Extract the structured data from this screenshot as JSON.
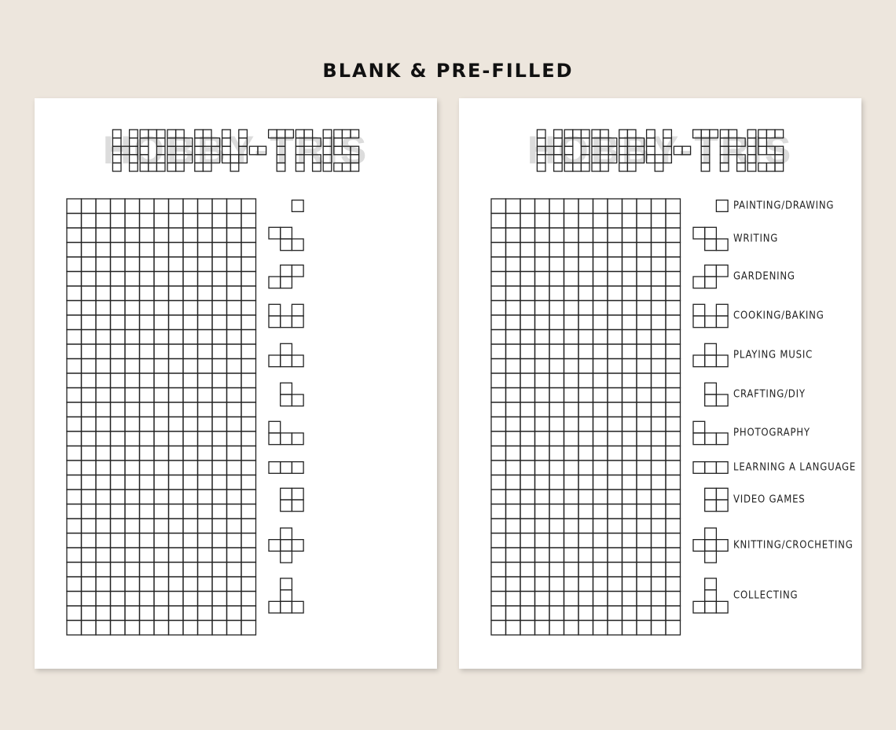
{
  "heading": "BLANK & PRE-FILLED",
  "pages": [
    {
      "name": "blank",
      "title": "HOBBY-TRIS",
      "grid": {
        "columns": 13,
        "rows": 30
      }
    },
    {
      "name": "pre-filled",
      "title": "HOBBY-TRIS",
      "grid": {
        "columns": 13,
        "rows": 30
      }
    }
  ],
  "legend": [
    {
      "shape": [
        "001"
      ],
      "label": "PAINTING/DRAWING"
    },
    {
      "shape": [
        "110",
        "011"
      ],
      "label": "WRITING"
    },
    {
      "shape": [
        "011",
        "110"
      ],
      "label": "GARDENING"
    },
    {
      "shape": [
        "101",
        "111"
      ],
      "label": "COOKING/BAKING"
    },
    {
      "shape": [
        "010",
        "111"
      ],
      "label": "PLAYING MUSIC"
    },
    {
      "shape": [
        "010",
        "011"
      ],
      "label": "CRAFTING/DIY"
    },
    {
      "shape": [
        "100",
        "111"
      ],
      "label": "PHOTOGRAPHY"
    },
    {
      "shape": [
        "111"
      ],
      "label": "LEARNING A LANGUAGE"
    },
    {
      "shape": [
        "011",
        "011"
      ],
      "label": "VIDEO GAMES"
    },
    {
      "shape": [
        "010",
        "111",
        "010"
      ],
      "label": "KNITTING/CROCHETING"
    },
    {
      "shape": [
        "010",
        "010",
        "111"
      ],
      "label": "COLLECTING"
    }
  ],
  "colors": {
    "background": "#ede6dd",
    "page": "#ffffff",
    "ink": "#222222"
  }
}
